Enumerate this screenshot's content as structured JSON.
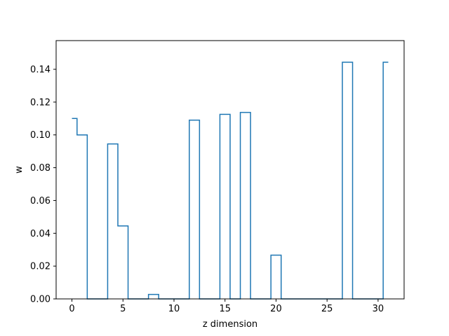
{
  "chart_data": {
    "type": "line",
    "title": "",
    "xlabel": "z dimension",
    "ylabel": "w",
    "xlim": [
      -1.55,
      32.55
    ],
    "ylim": [
      0.0,
      0.1575
    ],
    "grid": false,
    "line_style": "steps-mid",
    "x_ticks": [
      0,
      5,
      10,
      15,
      20,
      25,
      30
    ],
    "x_tick_labels": [
      "0",
      "5",
      "10",
      "15",
      "20",
      "25",
      "30"
    ],
    "y_ticks": [
      0.0,
      0.02,
      0.04,
      0.06,
      0.08,
      0.1,
      0.12,
      0.14
    ],
    "y_tick_labels": [
      "0.00",
      "0.02",
      "0.04",
      "0.06",
      "0.08",
      "0.10",
      "0.12",
      "0.14"
    ],
    "series": [
      {
        "color": "#1f77b4",
        "x": [
          0,
          1,
          2,
          3,
          4,
          5,
          6,
          7,
          8,
          9,
          10,
          11,
          12,
          13,
          14,
          15,
          16,
          17,
          18,
          19,
          20,
          21,
          22,
          23,
          24,
          25,
          26,
          27,
          28,
          29,
          30,
          31
        ],
        "values": [
          0.11,
          0.1,
          0.0,
          0.0,
          0.0945,
          0.0445,
          0.0,
          0.0,
          0.0027,
          0.0,
          0.0,
          0.0,
          0.109,
          0.0,
          0.0,
          0.1125,
          0.0,
          0.1137,
          0.0,
          0.0,
          0.0267,
          0.0,
          0.0,
          0.0,
          0.0,
          0.0,
          0.0,
          0.1443,
          0.0,
          0.0,
          0.0,
          0.1443
        ]
      }
    ]
  }
}
